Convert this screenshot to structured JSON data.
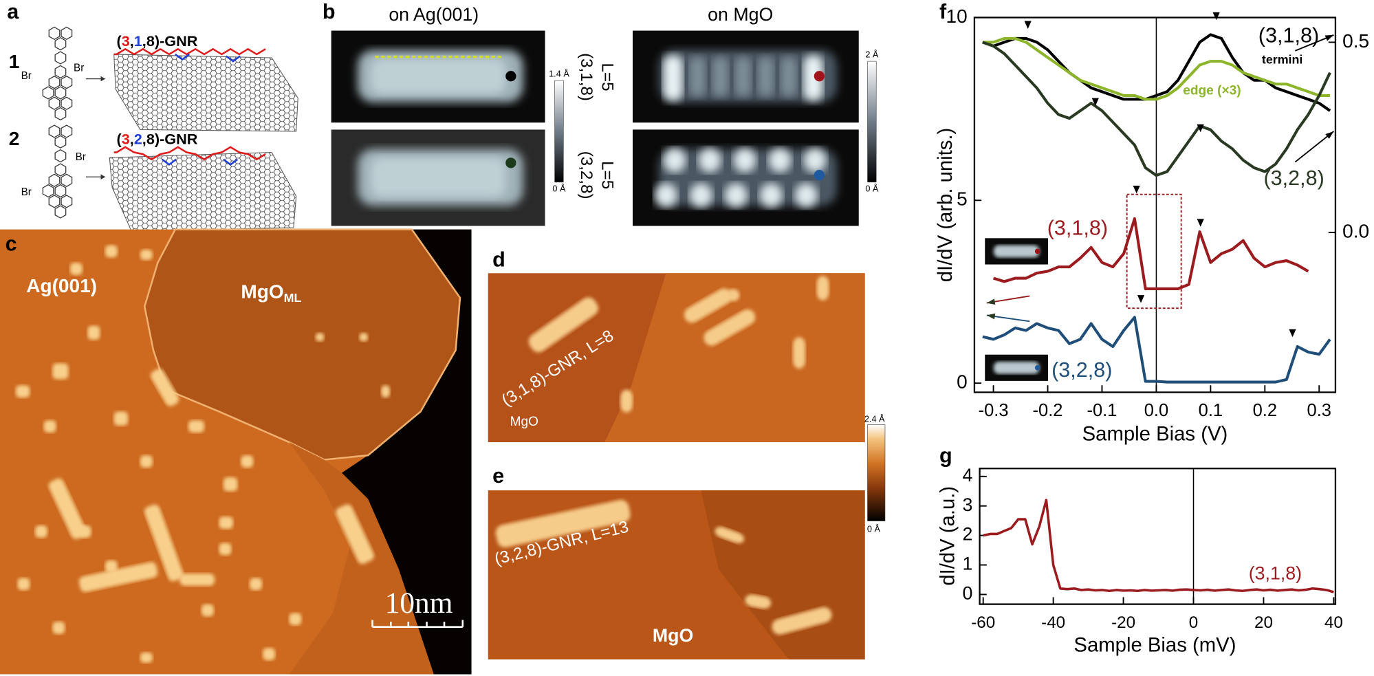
{
  "panels": {
    "a": {
      "label": "a",
      "molecules": [
        {
          "number": "1",
          "gnr_parts": [
            "(",
            "3",
            ",",
            "1",
            ",8)-GNR"
          ],
          "br": [
            "Br",
            "Br"
          ]
        },
        {
          "number": "2",
          "gnr_parts": [
            "(",
            "3",
            ",",
            "2",
            ",8)-GNR"
          ],
          "br": [
            "Br",
            "Br"
          ]
        }
      ]
    },
    "b": {
      "label": "b",
      "columns": [
        "on Ag(001)",
        "on MgO"
      ],
      "rows": [
        {
          "name": "(3,1,8)",
          "length": "L=5"
        },
        {
          "name": "(3,2,8)",
          "length": "L=5"
        }
      ],
      "colorbars": [
        [
          "1.4 Å",
          "0 Å"
        ],
        [
          "2 Å",
          "0 Å"
        ]
      ]
    },
    "c": {
      "label": "c",
      "region": "Ag(001)",
      "mgo": "MgO",
      "mgo_sub": "ML",
      "scale_bar": "10nm"
    },
    "d": {
      "label": "d",
      "annotation": "(3,1,8)-GNR, L=8",
      "substrate": "MgO"
    },
    "e": {
      "label": "e",
      "annotation": "(3,2,8)-GNR, L=13",
      "substrate": "MgO"
    },
    "de_colorbar": [
      "2.4 Å",
      "0 Å"
    ],
    "f": {
      "label": "f"
    },
    "g": {
      "label": "g"
    }
  },
  "chart_data": [
    {
      "type": "line",
      "xlabel": "Sample Bias (V)",
      "ylabel": "dI/dV (arb. units.)",
      "xlim": [
        -0.335,
        0.33
      ],
      "ylim": [
        -0.25,
        10
      ],
      "y2lim": [
        -0.42,
        0.565
      ],
      "xticks": [
        -0.3,
        -0.2,
        -0.1,
        {
          "value": 0,
          "label": "0.0"
        },
        0.1,
        0.2,
        0.3
      ],
      "yticks": [
        0,
        5,
        10
      ],
      "y2ticks": [
        {
          "value": 0,
          "label": "0.0"
        },
        0.5
      ],
      "vline": 0,
      "annotations": [
        "termini"
      ],
      "x": [
        -0.32,
        -0.3,
        -0.28,
        -0.26,
        -0.24,
        -0.22,
        -0.2,
        -0.18,
        -0.16,
        -0.14,
        -0.12,
        -0.1,
        -0.08,
        -0.06,
        -0.04,
        -0.02,
        0,
        0.02,
        0.04,
        0.06,
        0.08,
        0.1,
        0.12,
        0.14,
        0.16,
        0.18,
        0.2,
        0.22,
        0.24,
        0.26,
        0.28,
        0.3,
        0.32
      ],
      "series": [
        {
          "name": "(3,1,8)",
          "color": "#000000",
          "axis": "y2",
          "values": [
            0.5,
            0.49,
            0.5,
            0.51,
            0.51,
            0.5,
            0.48,
            0.45,
            0.42,
            0.4,
            0.38,
            0.37,
            0.36,
            0.35,
            0.35,
            0.35,
            0.36,
            0.37,
            0.4,
            0.45,
            0.5,
            0.52,
            0.51,
            0.46,
            0.42,
            0.4,
            0.4,
            0.38,
            0.37,
            0.36,
            0.35,
            0.34,
            0.32
          ]
        },
        {
          "name": "edge (×3)",
          "color": "#8db52a",
          "axis": "y2",
          "values": [
            0.5,
            0.5,
            0.51,
            0.51,
            0.5,
            0.48,
            0.46,
            0.44,
            0.42,
            0.4,
            0.39,
            0.38,
            0.37,
            0.36,
            0.36,
            0.35,
            0.35,
            0.36,
            0.38,
            0.41,
            0.44,
            0.45,
            0.45,
            0.44,
            0.42,
            0.41,
            0.4,
            0.39,
            0.39,
            0.38,
            0.37,
            0.36,
            0.36
          ]
        },
        {
          "name": "(3,2,8)",
          "color": "#2a3a22",
          "axis": "y2",
          "values": [
            0.5,
            0.49,
            0.47,
            0.44,
            0.41,
            0.38,
            0.34,
            0.31,
            0.3,
            0.32,
            0.34,
            0.32,
            0.29,
            0.26,
            0.23,
            0.17,
            0.15,
            0.16,
            0.2,
            0.24,
            0.28,
            0.27,
            0.24,
            0.22,
            0.19,
            0.17,
            0.16,
            0.18,
            0.22,
            0.27,
            0.31,
            0.36,
            0.42
          ]
        },
        {
          "name": "(3,1,8)",
          "color": "#9b1b1e",
          "values": [
            null,
            2.87,
            2.78,
            2.87,
            2.87,
            3.01,
            3.06,
            3.18,
            3.18,
            3.42,
            3.71,
            3.3,
            3.18,
            3.54,
            4.5,
            2.58,
            2.58,
            2.58,
            2.58,
            2.7,
            4.14,
            3.3,
            3.54,
            3.66,
            3.9,
            3.42,
            3.18,
            3.3,
            3.35,
            3.23,
            3.06,
            null,
            null
          ]
        },
        {
          "name": "(3,2,8)",
          "color": "#1f4e79",
          "values": [
            1.27,
            1.2,
            1.32,
            1.51,
            1.44,
            1.63,
            1.51,
            1.44,
            1.08,
            1.2,
            1.63,
            1.2,
            1.0,
            1.44,
            1.8,
            0.05,
            0.05,
            0.03,
            0.03,
            0.03,
            0.03,
            0.03,
            0.03,
            0.03,
            0.03,
            0.03,
            0.03,
            0.03,
            0.1,
            1.0,
            0.85,
            0.79,
            1.2
          ]
        }
      ]
    },
    {
      "type": "line",
      "xlabel": "Sample Bias (mV)",
      "ylabel": "dI/dV (a.u.)",
      "xlim": [
        -61,
        40.5
      ],
      "ylim": [
        -0.33,
        4.27
      ],
      "xticks": [
        -60,
        -40,
        -20,
        0,
        20,
        40
      ],
      "yticks": [
        0,
        1,
        2,
        3,
        4
      ],
      "vline": 0,
      "annotations": [],
      "x": [
        -60,
        -58,
        -56,
        -54,
        -52,
        -50,
        -48,
        -46,
        -44,
        -42,
        -40,
        -38,
        -36,
        -34,
        -32,
        -30,
        -28,
        -26,
        -24,
        -22,
        -20,
        -18,
        -16,
        -14,
        -12,
        -10,
        -8,
        -6,
        -4,
        -2,
        0,
        2,
        4,
        6,
        8,
        10,
        12,
        14,
        16,
        18,
        20,
        22,
        24,
        26,
        28,
        30,
        32,
        34,
        36,
        38,
        40
      ],
      "series": [
        {
          "name": "(3,1,8)",
          "color": "#9b1b1e",
          "values": [
            2.0,
            2.05,
            2.05,
            2.15,
            2.25,
            2.55,
            2.55,
            1.7,
            2.3,
            3.2,
            1.0,
            0.2,
            0.18,
            0.2,
            0.15,
            0.17,
            0.14,
            0.15,
            0.12,
            0.15,
            0.13,
            0.14,
            0.12,
            0.15,
            0.13,
            0.14,
            0.15,
            0.13,
            0.16,
            0.17,
            0.15,
            0.14,
            0.16,
            0.13,
            0.15,
            0.17,
            0.14,
            0.12,
            0.15,
            0.17,
            0.14,
            0.16,
            0.13,
            0.15,
            0.17,
            0.14,
            0.16,
            0.2,
            0.18,
            0.15,
            0.08
          ]
        }
      ]
    }
  ]
}
